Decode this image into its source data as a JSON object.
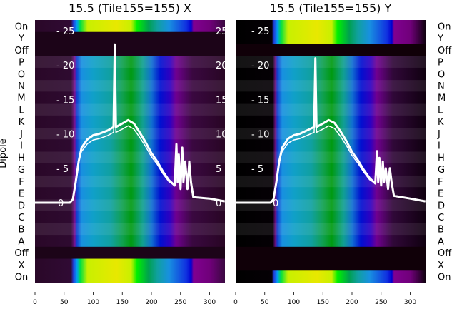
{
  "chart_data": {
    "type": "heatmap",
    "ylabel": "Dipole",
    "row_labels": [
      "On",
      "Y",
      "Off",
      "P",
      "O",
      "N",
      "M",
      "L",
      "K",
      "J",
      "I",
      "H",
      "G",
      "F",
      "E",
      "D",
      "C",
      "B",
      "A",
      "Off",
      "X",
      "On"
    ],
    "xlim": [
      0,
      326
    ],
    "x_ticks": [
      0,
      50,
      100,
      150,
      200,
      250,
      300
    ],
    "overlay_ylim": [
      0,
      26
    ],
    "overlay_y_ticks": [
      0,
      5,
      10,
      15,
      20,
      25
    ],
    "panels": [
      {
        "title": "15.5 (Tile155=155) X",
        "bright_rows": [
          "On",
          "X"
        ],
        "dark_rows": [
          "Y",
          "Off"
        ],
        "spectrum": {
          "x": [
            0,
            60,
            65,
            70,
            75,
            80,
            90,
            100,
            110,
            125,
            135,
            137,
            139,
            150,
            160,
            170,
            180,
            190,
            200,
            210,
            220,
            230,
            240,
            243,
            245,
            247,
            250,
            253,
            255,
            258,
            262,
            265,
            268,
            272,
            300,
            326
          ],
          "y": [
            0,
            0,
            0.5,
            3,
            6,
            8,
            9.2,
            9.8,
            10,
            10.5,
            11,
            23,
            11,
            11.5,
            12,
            11.5,
            10.2,
            8.8,
            7.2,
            6,
            4.5,
            3.3,
            2.5,
            8.5,
            3,
            7,
            2,
            8,
            3,
            6,
            2,
            6,
            3,
            0.8,
            0.6,
            0.2
          ]
        }
      },
      {
        "title": "15.5 (Tile155=155) Y",
        "bright_rows": [
          "On",
          "Y"
        ],
        "dark_rows": [
          "Off",
          "X"
        ],
        "spectrum": {
          "x": [
            0,
            60,
            65,
            70,
            75,
            80,
            90,
            100,
            110,
            125,
            135,
            137,
            139,
            150,
            160,
            170,
            180,
            190,
            200,
            210,
            220,
            230,
            240,
            243,
            245,
            247,
            250,
            253,
            255,
            258,
            262,
            265,
            268,
            272,
            300,
            326
          ],
          "y": [
            0,
            0,
            0.5,
            3,
            6,
            8,
            9.3,
            9.8,
            10,
            10.6,
            11,
            21,
            11,
            11.5,
            12,
            11.6,
            10.4,
            9,
            7.4,
            6.2,
            4.8,
            3.6,
            2.8,
            7.5,
            3,
            6.5,
            2.5,
            6,
            3,
            5,
            2,
            5,
            3,
            1,
            0.6,
            0.2
          ]
        }
      }
    ]
  }
}
